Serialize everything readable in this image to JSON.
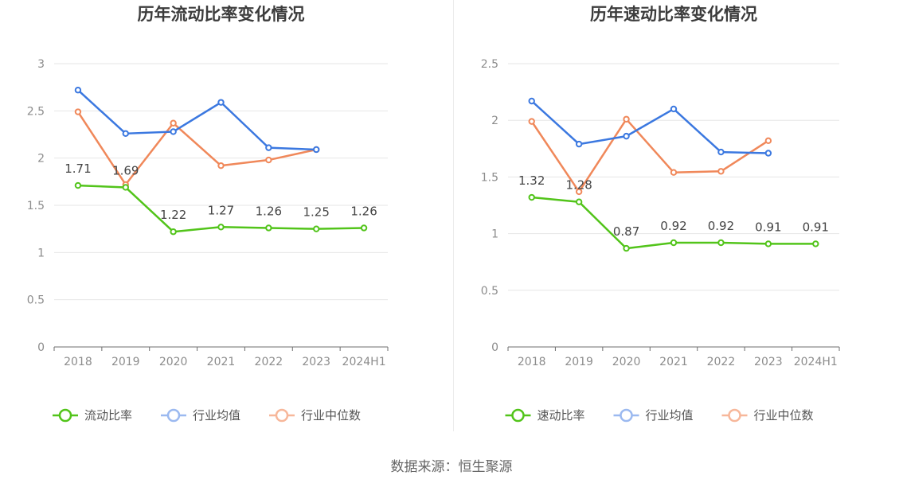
{
  "footer": {
    "source": "数据来源：恒生聚源"
  },
  "chart_data": [
    {
      "type": "line",
      "title": "历年流动比率变化情况",
      "categories": [
        "2018",
        "2019",
        "2020",
        "2021",
        "2022",
        "2023",
        "2024H1"
      ],
      "ylim": [
        0,
        3
      ],
      "yticks": [
        "0",
        "0.5",
        "1",
        "1.5",
        "2",
        "2.5",
        "3"
      ],
      "grid": true,
      "legend_position": "bottom",
      "series": [
        {
          "name": "流动比率",
          "color": "#52c41a",
          "values": [
            1.71,
            1.69,
            1.22,
            1.27,
            1.26,
            1.25,
            1.26
          ],
          "labels": [
            "1.71",
            "1.69",
            "1.22",
            "1.27",
            "1.26",
            "1.25",
            "1.26"
          ]
        },
        {
          "name": "行业均值",
          "color": "#3b78e0",
          "legend_color": "#9bb9f0",
          "values": [
            2.72,
            2.26,
            2.28,
            2.59,
            2.11,
            2.09,
            null
          ]
        },
        {
          "name": "行业中位数",
          "color": "#f0885a",
          "legend_color": "#f7b79a",
          "values": [
            2.49,
            1.72,
            2.37,
            1.92,
            1.98,
            2.09,
            null
          ]
        }
      ]
    },
    {
      "type": "line",
      "title": "历年速动比率变化情况",
      "categories": [
        "2018",
        "2019",
        "2020",
        "2021",
        "2022",
        "2023",
        "2024H1"
      ],
      "ylim": [
        0,
        2.5
      ],
      "yticks": [
        "0",
        "0.5",
        "1",
        "1.5",
        "2",
        "2.5"
      ],
      "grid": true,
      "legend_position": "bottom",
      "series": [
        {
          "name": "速动比率",
          "color": "#52c41a",
          "values": [
            1.32,
            1.28,
            0.87,
            0.92,
            0.92,
            0.91,
            0.91
          ],
          "labels": [
            "1.32",
            "1.28",
            "0.87",
            "0.92",
            "0.92",
            "0.91",
            "0.91"
          ]
        },
        {
          "name": "行业均值",
          "color": "#3b78e0",
          "legend_color": "#9bb9f0",
          "values": [
            2.17,
            1.79,
            1.86,
            2.1,
            1.72,
            1.71,
            null
          ]
        },
        {
          "name": "行业中位数",
          "color": "#f0885a",
          "legend_color": "#f7b79a",
          "values": [
            1.99,
            1.37,
            2.01,
            1.54,
            1.55,
            1.82,
            null
          ]
        }
      ]
    }
  ]
}
